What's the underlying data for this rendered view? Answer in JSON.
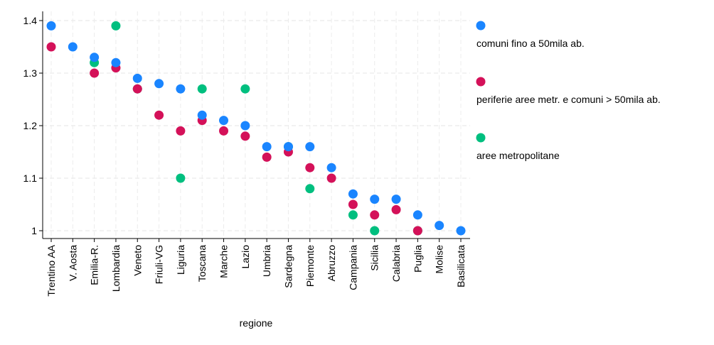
{
  "chart_data": {
    "type": "scatter",
    "xlabel": "regione",
    "ylabel": "",
    "ylim": [
      0.99,
      1.41
    ],
    "yticks": [
      1,
      1.1,
      1.2,
      1.3,
      1.4
    ],
    "ytick_labels": [
      "1",
      "1.1",
      "1.2",
      "1.3",
      "1.4"
    ],
    "grid": true,
    "legend_position": "right",
    "categories": [
      "Trentino AA",
      "V. Aosta",
      "Emilia-R.",
      "Lombardia",
      "Veneto",
      "Friuli-VG",
      "Liguria",
      "Toscana",
      "Marche",
      "Lazio",
      "Umbria",
      "Sardegna",
      "Piemonte",
      "Abruzzo",
      "Campania",
      "Sicilia",
      "Calabria",
      "Puglia",
      "Molise",
      "Basilicata"
    ],
    "series": [
      {
        "name": "comuni fino a 50mila ab.",
        "color": "#1a85ff",
        "values": [
          1.39,
          1.35,
          1.33,
          1.32,
          1.29,
          1.28,
          1.27,
          1.22,
          1.21,
          1.2,
          1.16,
          1.16,
          1.16,
          1.12,
          1.07,
          1.06,
          1.06,
          1.03,
          1.01,
          1.0
        ]
      },
      {
        "name": "periferie aree metr. e comuni > 50mila ab.",
        "color": "#d41159",
        "values": [
          1.35,
          null,
          1.3,
          1.31,
          1.27,
          1.22,
          1.19,
          1.21,
          1.19,
          1.18,
          1.14,
          1.15,
          1.12,
          1.1,
          1.05,
          1.03,
          1.04,
          1.0,
          null,
          null
        ]
      },
      {
        "name": "aree metropolitane",
        "color": "#00bf7f",
        "values": [
          null,
          null,
          1.32,
          1.39,
          1.27,
          null,
          1.1,
          1.27,
          null,
          1.27,
          null,
          1.16,
          1.08,
          null,
          1.03,
          1.0,
          null,
          1.0,
          null,
          null
        ]
      }
    ]
  }
}
